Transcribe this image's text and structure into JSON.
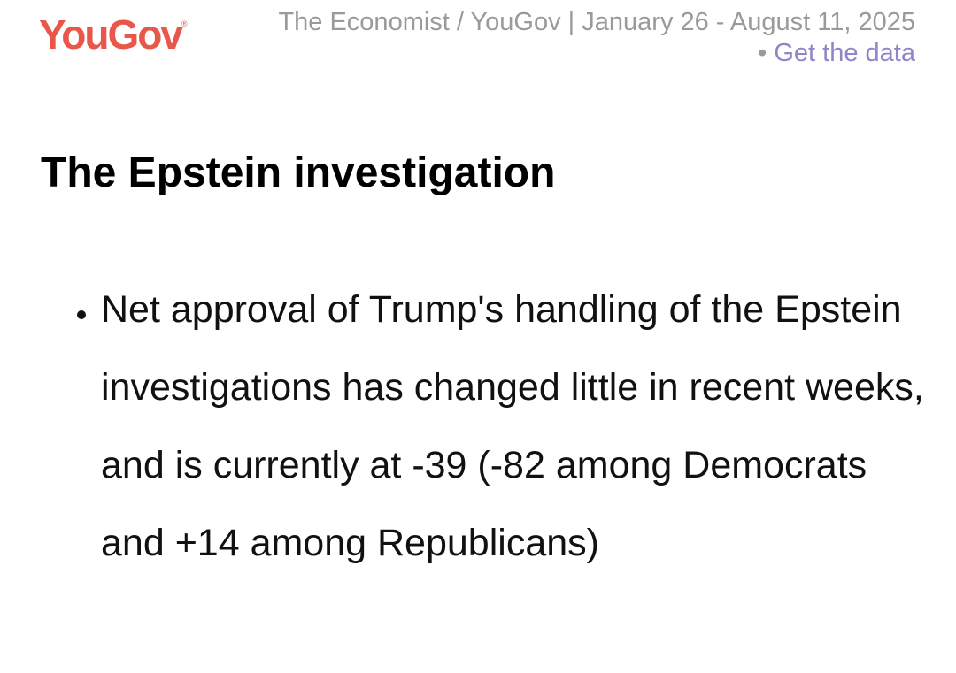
{
  "header": {
    "logo": "YouGov",
    "logo_mark": "®",
    "source": "The Economist / YouGov | January 26 - August 11, 2025",
    "separator": "•",
    "link": "Get the data"
  },
  "heading": "The Epstein investigation",
  "bullets": [
    "Net approval of Trump's handling of the Epstein investigations has changed little in recent weeks, and is currently at -39 (-82 among Democrats and +14 among Republicans)"
  ]
}
